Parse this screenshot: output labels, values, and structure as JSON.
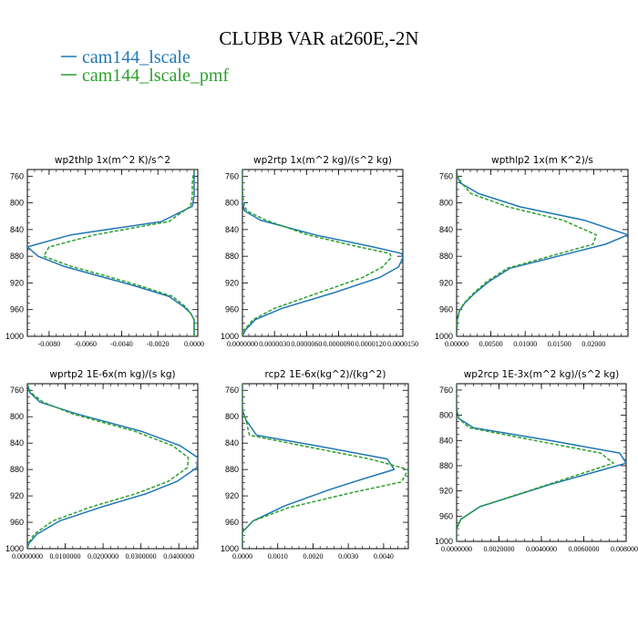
{
  "title": "CLUBB VAR at260E,-2N",
  "legend": [
    {
      "name": "cam144_lscale",
      "color": "#1f77b4"
    },
    {
      "name": "cam144_lscale_pmf",
      "color": "#2ca02c"
    }
  ],
  "chart_data": [
    {
      "type": "line",
      "title": "wp2thlp  1x(m^2 K)/s^2",
      "xlim": [
        -0.0092,
        0.0002
      ],
      "ylim": [
        1000,
        750
      ],
      "xticks": [
        -0.008,
        -0.006,
        -0.004,
        -0.002,
        0.0
      ],
      "xtick_labels": [
        "-0.0080",
        "-0.0060",
        "-0.0040",
        "-0.0020",
        "0.0000"
      ],
      "yticks": [
        760,
        800,
        840,
        880,
        920,
        960,
        1000
      ],
      "ytick_labels": [
        "760",
        "800",
        "840",
        "880",
        "920",
        "960",
        "1000"
      ],
      "grid": false,
      "series": [
        {
          "name": "cam144_lscale",
          "color": "#1f77b4",
          "dashed": false,
          "x": [
            0.0,
            0.0,
            0.0,
            -0.0001,
            -0.0018,
            -0.0068,
            -0.0092,
            -0.0086,
            -0.0072,
            -0.0052,
            -0.0032,
            -0.0014,
            -0.0006,
            -0.0002,
            0.0,
            0.0,
            0.0
          ],
          "y": [
            750,
            770,
            790,
            805,
            828,
            848,
            866,
            880,
            895,
            910,
            925,
            940,
            955,
            965,
            975,
            985,
            1000
          ]
        },
        {
          "name": "cam144_lscale_pmf",
          "color": "#2ca02c",
          "dashed": true,
          "x": [
            0.0,
            -0.0001,
            -0.0001,
            -0.0002,
            -0.0014,
            -0.0055,
            -0.008,
            -0.0083,
            -0.0068,
            -0.0048,
            -0.0029,
            -0.0012,
            -0.0005,
            -0.0002,
            0.0,
            0.0,
            0.0
          ],
          "y": [
            750,
            770,
            790,
            805,
            828,
            848,
            866,
            880,
            895,
            910,
            925,
            940,
            955,
            965,
            975,
            985,
            1000
          ]
        }
      ]
    },
    {
      "type": "line",
      "title": "wp2rtp  1x(m^2 kg)/(s^2 kg)",
      "xlim": [
        0.0,
        1.5e-05
      ],
      "ylim": [
        1000,
        750
      ],
      "xticks": [
        0.0,
        3e-06,
        6e-06,
        9e-06,
        1.2e-05,
        1.5e-05
      ],
      "xtick_labels": [
        "0.0000000",
        "0.0000030",
        "0.0000060",
        "0.0000090",
        "0.0000120",
        "0.0000150"
      ],
      "yticks": [
        760,
        800,
        840,
        880,
        920,
        960,
        1000
      ],
      "ytick_labels": [
        "760",
        "800",
        "840",
        "880",
        "920",
        "960",
        "1000"
      ],
      "grid": false,
      "series": [
        {
          "name": "cam144_lscale",
          "color": "#1f77b4",
          "dashed": false,
          "x": [
            0.0,
            0.0,
            0.0,
            2e-07,
            1.7e-06,
            6.8e-06,
            1.22e-05,
            1.49e-05,
            1.5e-05,
            1.46e-05,
            1.28e-05,
            8.5e-06,
            3.7e-06,
            1.2e-06,
            3e-07,
            0.0
          ],
          "y": [
            750,
            780,
            800,
            812,
            826,
            848,
            866,
            876,
            882,
            896,
            912,
            935,
            958,
            975,
            990,
            1000
          ]
        },
        {
          "name": "cam144_lscale_pmf",
          "color": "#2ca02c",
          "dashed": true,
          "x": [
            0.0,
            0.0,
            1e-07,
            4e-07,
            2.2e-06,
            6.1e-06,
            1.09e-05,
            1.38e-05,
            1.39e-05,
            1.31e-05,
            1.12e-05,
            7.1e-06,
            3e-06,
            1e-06,
            2e-07,
            0.0
          ],
          "y": [
            750,
            780,
            800,
            812,
            826,
            848,
            866,
            876,
            882,
            896,
            912,
            935,
            958,
            975,
            990,
            1000
          ]
        }
      ]
    },
    {
      "type": "line",
      "title": "wpthlp2  1x(m K^2)/s",
      "xlim": [
        0.0,
        0.025
      ],
      "ylim": [
        1000,
        750
      ],
      "xticks": [
        0.0,
        0.005,
        0.01,
        0.015,
        0.02
      ],
      "xtick_labels": [
        "0.00000",
        "0.00500",
        "0.01000",
        "0.01500",
        "0.02000"
      ],
      "yticks": [
        760,
        800,
        840,
        880,
        920,
        960,
        1000
      ],
      "ytick_labels": [
        "760",
        "800",
        "840",
        "880",
        "920",
        "960",
        "1000"
      ],
      "grid": false,
      "series": [
        {
          "name": "cam144_lscale",
          "color": "#1f77b4",
          "dashed": false,
          "x": [
            0.0,
            0.0001,
            0.0005,
            0.0032,
            0.0093,
            0.0186,
            0.025,
            0.0217,
            0.0078,
            0.0047,
            0.0027,
            0.0012,
            0.0004,
            0.0001,
            0.0
          ],
          "y": [
            750,
            760,
            770,
            786,
            806,
            826,
            848,
            862,
            898,
            918,
            935,
            950,
            962,
            975,
            1000
          ]
        },
        {
          "name": "cam144_lscale_pmf",
          "color": "#2ca02c",
          "dashed": true,
          "x": [
            0.0,
            0.0001,
            0.0007,
            0.0021,
            0.0075,
            0.0155,
            0.0204,
            0.0199,
            0.0074,
            0.0044,
            0.0025,
            0.0011,
            0.0004,
            0.0001,
            0.0
          ],
          "y": [
            750,
            760,
            770,
            786,
            806,
            826,
            848,
            862,
            898,
            918,
            935,
            950,
            962,
            975,
            1000
          ]
        }
      ]
    },
    {
      "type": "line",
      "title": "wprtp2  1E-6x(m kg)/(s kg)",
      "xlim": [
        0.0,
        0.045
      ],
      "ylim": [
        1000,
        750
      ],
      "xticks": [
        0.0,
        0.01,
        0.02,
        0.03,
        0.04
      ],
      "xtick_labels": [
        "0.0000000",
        "0.0100000",
        "0.0200000",
        "0.0300000",
        "0.0400000"
      ],
      "yticks": [
        760,
        800,
        840,
        880,
        920,
        960,
        1000
      ],
      "ytick_labels": [
        "760",
        "800",
        "840",
        "880",
        "920",
        "960",
        "1000"
      ],
      "grid": false,
      "series": [
        {
          "name": "cam144_lscale",
          "color": "#1f77b4",
          "dashed": false,
          "x": [
            0.0,
            0.0006,
            0.0034,
            0.0132,
            0.03,
            0.0404,
            0.045,
            0.0448,
            0.0395,
            0.0312,
            0.0195,
            0.0085,
            0.0025,
            0.0004,
            0.0
          ],
          "y": [
            750,
            763,
            778,
            796,
            822,
            844,
            862,
            877,
            898,
            917,
            937,
            958,
            978,
            992,
            1000
          ]
        },
        {
          "name": "cam144_lscale_pmf",
          "color": "#2ca02c",
          "dashed": true,
          "x": [
            0.0,
            0.0008,
            0.0042,
            0.0121,
            0.0283,
            0.0384,
            0.0425,
            0.0423,
            0.0372,
            0.0285,
            0.0167,
            0.0067,
            0.0018,
            0.0003,
            0.0
          ],
          "y": [
            750,
            763,
            778,
            796,
            822,
            844,
            862,
            877,
            898,
            917,
            937,
            958,
            978,
            992,
            1000
          ]
        }
      ]
    },
    {
      "type": "line",
      "title": "rcp2  1E-6x(kg^2)/(kg^2)",
      "xlim": [
        0.0,
        0.0047
      ],
      "ylim": [
        1000,
        750
      ],
      "xticks": [
        0.0,
        0.001,
        0.002,
        0.003,
        0.004
      ],
      "xtick_labels": [
        "0.0000",
        "0.0010",
        "0.0020",
        "0.0030",
        "0.0040"
      ],
      "yticks": [
        760,
        800,
        840,
        880,
        920,
        960,
        1000
      ],
      "ytick_labels": [
        "760",
        "800",
        "840",
        "880",
        "920",
        "960",
        "1000"
      ],
      "grid": false,
      "series": [
        {
          "name": "cam144_lscale",
          "color": "#1f77b4",
          "dashed": false,
          "x": [
            0.0,
            0.0,
            0.0001,
            0.0004,
            0.0021,
            0.0041,
            0.0043,
            0.0035,
            0.0025,
            0.0012,
            0.0003,
            0.0,
            0.0
          ],
          "y": [
            750,
            790,
            805,
            828,
            844,
            864,
            880,
            893,
            910,
            935,
            958,
            975,
            1000
          ]
        },
        {
          "name": "cam144_lscale_pmf",
          "color": "#2ca02c",
          "dashed": true,
          "x": [
            0.0,
            0.0,
            0.0001,
            0.0002,
            0.0017,
            0.0036,
            0.0047,
            0.0045,
            0.0031,
            0.0013,
            0.0003,
            0.0,
            0.0
          ],
          "y": [
            750,
            790,
            805,
            828,
            844,
            864,
            880,
            899,
            915,
            938,
            958,
            975,
            1000
          ]
        }
      ]
    },
    {
      "type": "line",
      "title": "wp2rcp  1E-3x(m^2 kg)/(s^2 kg)",
      "xlim": [
        0.0,
        0.008
      ],
      "ylim": [
        1000,
        750
      ],
      "xticks": [
        0.0,
        0.002,
        0.004,
        0.006,
        0.008
      ],
      "xtick_labels": [
        "0.0000000",
        "0.0020000",
        "0.0040000",
        "0.0060000",
        "0.0080000"
      ],
      "yticks": [
        760,
        800,
        840,
        880,
        920,
        960,
        1000
      ],
      "ytick_labels": [
        "760",
        "800",
        "840",
        "880",
        "920",
        "960",
        "1000"
      ],
      "grid": false,
      "series": [
        {
          "name": "cam144_lscale",
          "color": "#1f77b4",
          "dashed": false,
          "x": [
            0.0,
            0.0,
            0.0001,
            0.0008,
            0.0044,
            0.0077,
            0.008,
            0.0044,
            0.0011,
            0.0002,
            0.0,
            0.0
          ],
          "y": [
            750,
            790,
            805,
            820,
            840,
            860,
            876,
            910,
            945,
            965,
            980,
            1000
          ]
        },
        {
          "name": "cam144_lscale_pmf",
          "color": "#2ca02c",
          "dashed": true,
          "x": [
            0.0,
            0.0,
            0.0001,
            0.0006,
            0.0037,
            0.0068,
            0.0074,
            0.0043,
            0.0011,
            0.0002,
            0.0,
            0.0
          ],
          "y": [
            750,
            790,
            805,
            820,
            840,
            860,
            876,
            910,
            945,
            965,
            980,
            1000
          ]
        }
      ]
    }
  ]
}
